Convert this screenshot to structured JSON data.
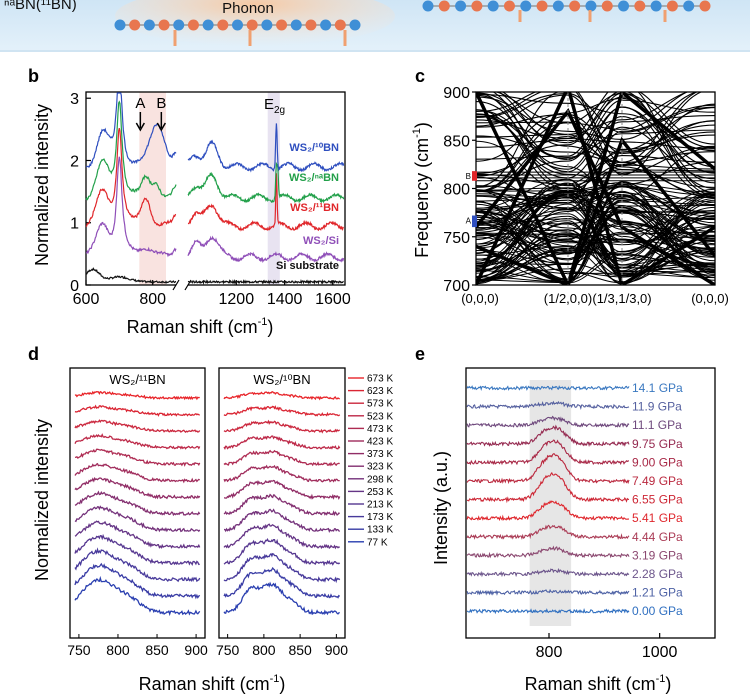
{
  "top_banner": {
    "left_label_prefix": "",
    "left_label_main": "ⁿᵃBN(¹¹BN)",
    "center_label": "Phonon"
  },
  "panels": {
    "b": {
      "letter": "b",
      "xlabel": "Raman shift (cm",
      "xlabel_sup": "-1",
      "xlabel_close": ")",
      "ylabel": "Normalized intensity",
      "peak_labels": {
        "a": "A",
        "b": "B",
        "e2g": "E",
        "e2g_sub": "2g"
      },
      "series": [
        {
          "name": "WS₂/¹⁰BN",
          "color": "#2f4fbf"
        },
        {
          "name": "WS₂/ⁿᵃBN",
          "color": "#22a04a"
        },
        {
          "name": "WS₂/¹¹BN",
          "color": "#e0262a"
        },
        {
          "name": "WS₂/Si",
          "color": "#8f4fb8"
        },
        {
          "name": "Si substrate",
          "color": "#111111"
        }
      ]
    },
    "c": {
      "letter": "c",
      "ylabel": "Frequency (cm",
      "ylabel_sup": "-1",
      "ylabel_close": ")",
      "q_points": [
        "(0,0,0)",
        "(1/2,0,0)",
        "(1/3,1/3,0)",
        "(0,0,0)"
      ],
      "marker_b": "B",
      "marker_a": "A"
    },
    "d": {
      "letter": "d",
      "ylabel": "Normalized intensity",
      "xlabel": "Raman shift (cm",
      "xlabel_sup": "-1",
      "xlabel_close": ")",
      "left_title": "WS₂/¹¹BN",
      "right_title": "WS₂/¹⁰BN",
      "temperatures": [
        "673 K",
        "623 K",
        "573 K",
        "523 K",
        "473 K",
        "423 K",
        "373 K",
        "323 K",
        "298 K",
        "253 K",
        "213 K",
        "173 K",
        "133 K",
        "77 K"
      ]
    },
    "e": {
      "letter": "e",
      "ylabel": "Intensity (a.u.)",
      "xlabel": "Raman shift (cm",
      "xlabel_sup": "-1",
      "xlabel_close": ")",
      "pressures": [
        "14.1 GPa",
        "11.9 GPa",
        "11.1 GPa",
        "9.75 GPa",
        "9.00 GPa",
        "7.49 GPa",
        "6.55 GPa",
        "5.41 GPa",
        "4.44 GPa",
        "3.19 GPa",
        "2.28 GPa",
        "1.21 GPa",
        "0.00 GPa"
      ]
    }
  },
  "chart_data": [
    {
      "panel": "b",
      "type": "line",
      "xlim": [
        600,
        1650
      ],
      "ylim": [
        0,
        3
      ],
      "x_ticks": [
        "600",
        "800",
        "1200",
        "1400",
        "1600"
      ],
      "y_ticks": [
        "0",
        "1",
        "2",
        "3"
      ],
      "series": [
        {
          "name": "WS₂/¹⁰BN",
          "offset": 1.9
        },
        {
          "name": "WS₂/ⁿᵃBN",
          "offset": 1.4
        },
        {
          "name": "WS₂/¹¹BN",
          "offset": 0.95
        },
        {
          "name": "WS₂/Si",
          "offset": 0.45
        },
        {
          "name": "Si substrate",
          "offset": 0.05
        }
      ]
    },
    {
      "panel": "c",
      "type": "line",
      "ylim": [
        700,
        900
      ],
      "y_ticks": [
        "700",
        "750",
        "800",
        "850",
        "900"
      ]
    },
    {
      "panel": "d",
      "type": "line",
      "xlim": [
        740,
        910
      ],
      "x_ticks": [
        "750",
        "800",
        "850",
        "900"
      ],
      "temperatures_K": [
        673,
        623,
        573,
        523,
        473,
        423,
        373,
        323,
        298,
        253,
        213,
        173,
        133,
        77
      ]
    },
    {
      "panel": "e",
      "type": "line",
      "xlim": [
        650,
        1100
      ],
      "x_ticks": [
        "800",
        "1000"
      ],
      "pressures_GPa": [
        14.1,
        11.9,
        11.1,
        9.75,
        9.0,
        7.49,
        6.55,
        5.41,
        4.44,
        3.19,
        2.28,
        1.21,
        0.0
      ]
    }
  ]
}
